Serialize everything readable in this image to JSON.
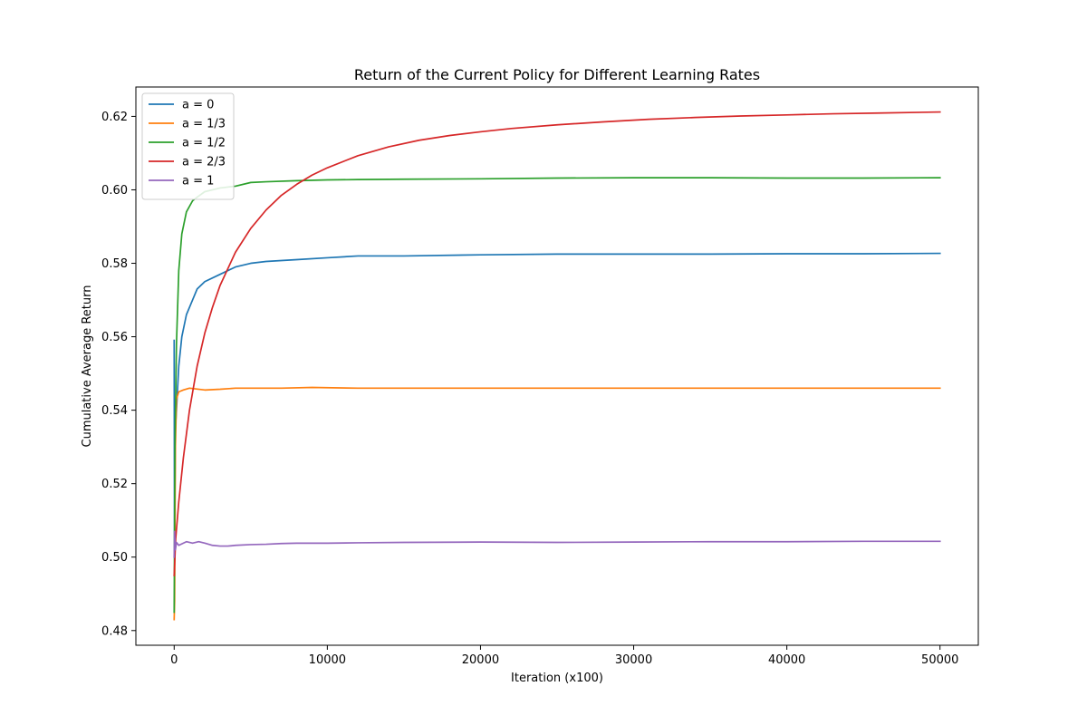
{
  "chart_data": {
    "type": "line",
    "title": "Return of the Current Policy for Different Learning Rates",
    "xlabel": "Iteration (x100)",
    "ylabel": "Cumulative Average Return",
    "xlim": [
      -2500,
      52500
    ],
    "ylim": [
      0.476,
      0.628
    ],
    "xticks": [
      0,
      10000,
      20000,
      30000,
      40000,
      50000
    ],
    "xtick_labels": [
      "0",
      "10000",
      "20000",
      "30000",
      "40000",
      "50000"
    ],
    "yticks": [
      0.48,
      0.5,
      0.52,
      0.54,
      0.56,
      0.58,
      0.6,
      0.62
    ],
    "ytick_labels": [
      "0.48",
      "0.50",
      "0.52",
      "0.54",
      "0.56",
      "0.58",
      "0.60",
      "0.62"
    ],
    "grid": false,
    "legend_position": "top-left",
    "series": [
      {
        "name": "a = 0",
        "color": "#1f77b4",
        "points": [
          [
            0,
            0.559
          ],
          [
            20,
            0.5
          ],
          [
            80,
            0.535
          ],
          [
            150,
            0.54
          ],
          [
            300,
            0.552
          ],
          [
            500,
            0.56
          ],
          [
            800,
            0.566
          ],
          [
            1200,
            0.57
          ],
          [
            1500,
            0.573
          ],
          [
            2000,
            0.575
          ],
          [
            3000,
            0.577
          ],
          [
            4000,
            0.579
          ],
          [
            5000,
            0.58
          ],
          [
            6000,
            0.5805
          ],
          [
            8000,
            0.581
          ],
          [
            10000,
            0.5815
          ],
          [
            12000,
            0.582
          ],
          [
            15000,
            0.582
          ],
          [
            20000,
            0.5823
          ],
          [
            25000,
            0.5825
          ],
          [
            30000,
            0.5825
          ],
          [
            35000,
            0.5825
          ],
          [
            40000,
            0.5826
          ],
          [
            45000,
            0.5826
          ],
          [
            50000,
            0.5827
          ]
        ]
      },
      {
        "name": "a = 1/3",
        "color": "#ff7f0e",
        "points": [
          [
            0,
            0.483
          ],
          [
            30,
            0.488
          ],
          [
            80,
            0.53
          ],
          [
            150,
            0.543
          ],
          [
            300,
            0.545
          ],
          [
            600,
            0.5455
          ],
          [
            1000,
            0.546
          ],
          [
            2000,
            0.5455
          ],
          [
            3000,
            0.5457
          ],
          [
            4000,
            0.546
          ],
          [
            5000,
            0.546
          ],
          [
            7000,
            0.546
          ],
          [
            9000,
            0.5462
          ],
          [
            12000,
            0.546
          ],
          [
            15000,
            0.546
          ],
          [
            20000,
            0.546
          ],
          [
            25000,
            0.546
          ],
          [
            30000,
            0.546
          ],
          [
            35000,
            0.546
          ],
          [
            40000,
            0.546
          ],
          [
            45000,
            0.546
          ],
          [
            50000,
            0.546
          ]
        ]
      },
      {
        "name": "a = 1/2",
        "color": "#2ca02c",
        "points": [
          [
            0,
            0.485
          ],
          [
            50,
            0.53
          ],
          [
            150,
            0.558
          ],
          [
            300,
            0.578
          ],
          [
            500,
            0.588
          ],
          [
            800,
            0.594
          ],
          [
            1200,
            0.597
          ],
          [
            1500,
            0.598
          ],
          [
            2000,
            0.5995
          ],
          [
            3000,
            0.6005
          ],
          [
            4000,
            0.601
          ],
          [
            5000,
            0.602
          ],
          [
            6000,
            0.6022
          ],
          [
            8000,
            0.6025
          ],
          [
            10000,
            0.6027
          ],
          [
            12000,
            0.6028
          ],
          [
            15000,
            0.6029
          ],
          [
            20000,
            0.603
          ],
          [
            25000,
            0.6032
          ],
          [
            30000,
            0.6033
          ],
          [
            35000,
            0.6033
          ],
          [
            40000,
            0.6032
          ],
          [
            45000,
            0.6032
          ],
          [
            50000,
            0.6033
          ]
        ]
      },
      {
        "name": "a = 2/3",
        "color": "#d62728",
        "points": [
          [
            0,
            0.495
          ],
          [
            100,
            0.505
          ],
          [
            300,
            0.515
          ],
          [
            600,
            0.527
          ],
          [
            1000,
            0.54
          ],
          [
            1500,
            0.552
          ],
          [
            2000,
            0.561
          ],
          [
            2500,
            0.568
          ],
          [
            3000,
            0.574
          ],
          [
            4000,
            0.583
          ],
          [
            5000,
            0.5895
          ],
          [
            6000,
            0.5945
          ],
          [
            7000,
            0.5985
          ],
          [
            8000,
            0.6015
          ],
          [
            9000,
            0.604
          ],
          [
            10000,
            0.606
          ],
          [
            12000,
            0.6093
          ],
          [
            14000,
            0.6117
          ],
          [
            16000,
            0.6135
          ],
          [
            18000,
            0.6148
          ],
          [
            20000,
            0.6158
          ],
          [
            22000,
            0.6167
          ],
          [
            25000,
            0.6177
          ],
          [
            28000,
            0.6185
          ],
          [
            31000,
            0.6192
          ],
          [
            34000,
            0.6197
          ],
          [
            37000,
            0.6201
          ],
          [
            40000,
            0.6204
          ],
          [
            43000,
            0.6207
          ],
          [
            46000,
            0.6209
          ],
          [
            50000,
            0.6212
          ]
        ]
      },
      {
        "name": "a = 1",
        "color": "#9467bd",
        "points": [
          [
            0,
            0.5
          ],
          [
            30,
            0.507
          ],
          [
            80,
            0.502
          ],
          [
            150,
            0.504
          ],
          [
            300,
            0.5032
          ],
          [
            500,
            0.5036
          ],
          [
            800,
            0.5042
          ],
          [
            1200,
            0.5038
          ],
          [
            1600,
            0.5042
          ],
          [
            2000,
            0.5038
          ],
          [
            2500,
            0.5032
          ],
          [
            3000,
            0.503
          ],
          [
            3500,
            0.503
          ],
          [
            4000,
            0.5032
          ],
          [
            5000,
            0.5034
          ],
          [
            6000,
            0.5035
          ],
          [
            7000,
            0.5037
          ],
          [
            8000,
            0.5038
          ],
          [
            10000,
            0.5038
          ],
          [
            12000,
            0.5039
          ],
          [
            15000,
            0.504
          ],
          [
            20000,
            0.5041
          ],
          [
            25000,
            0.504
          ],
          [
            30000,
            0.5041
          ],
          [
            35000,
            0.5042
          ],
          [
            40000,
            0.5042
          ],
          [
            45000,
            0.5043
          ],
          [
            50000,
            0.5043
          ]
        ]
      }
    ]
  }
}
